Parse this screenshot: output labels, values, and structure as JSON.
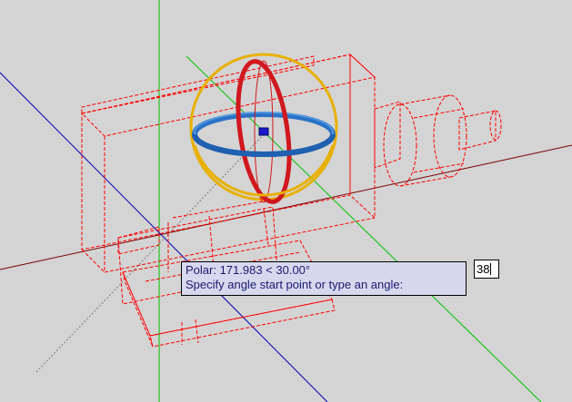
{
  "tooltip": {
    "line1": "Polar: 171.983 < 30.00°",
    "line2": "Specify angle start point or type an angle:"
  },
  "dynamic_input": {
    "value": "38"
  },
  "colors": {
    "background": "#d4d4d4",
    "x_axis": "#7a0000",
    "y_axis": "#00c000",
    "z_axis": "#0000b0",
    "wireframe": "#ff0000",
    "gizmo_x": "#d0181f",
    "gizmo_y": "#2a72c8",
    "gizmo_z": "#e8b000",
    "rubberband": "#8a8a8a"
  },
  "icons": [
    "rotate-gizmo-icon",
    "gizmo-center-grip-icon"
  ]
}
